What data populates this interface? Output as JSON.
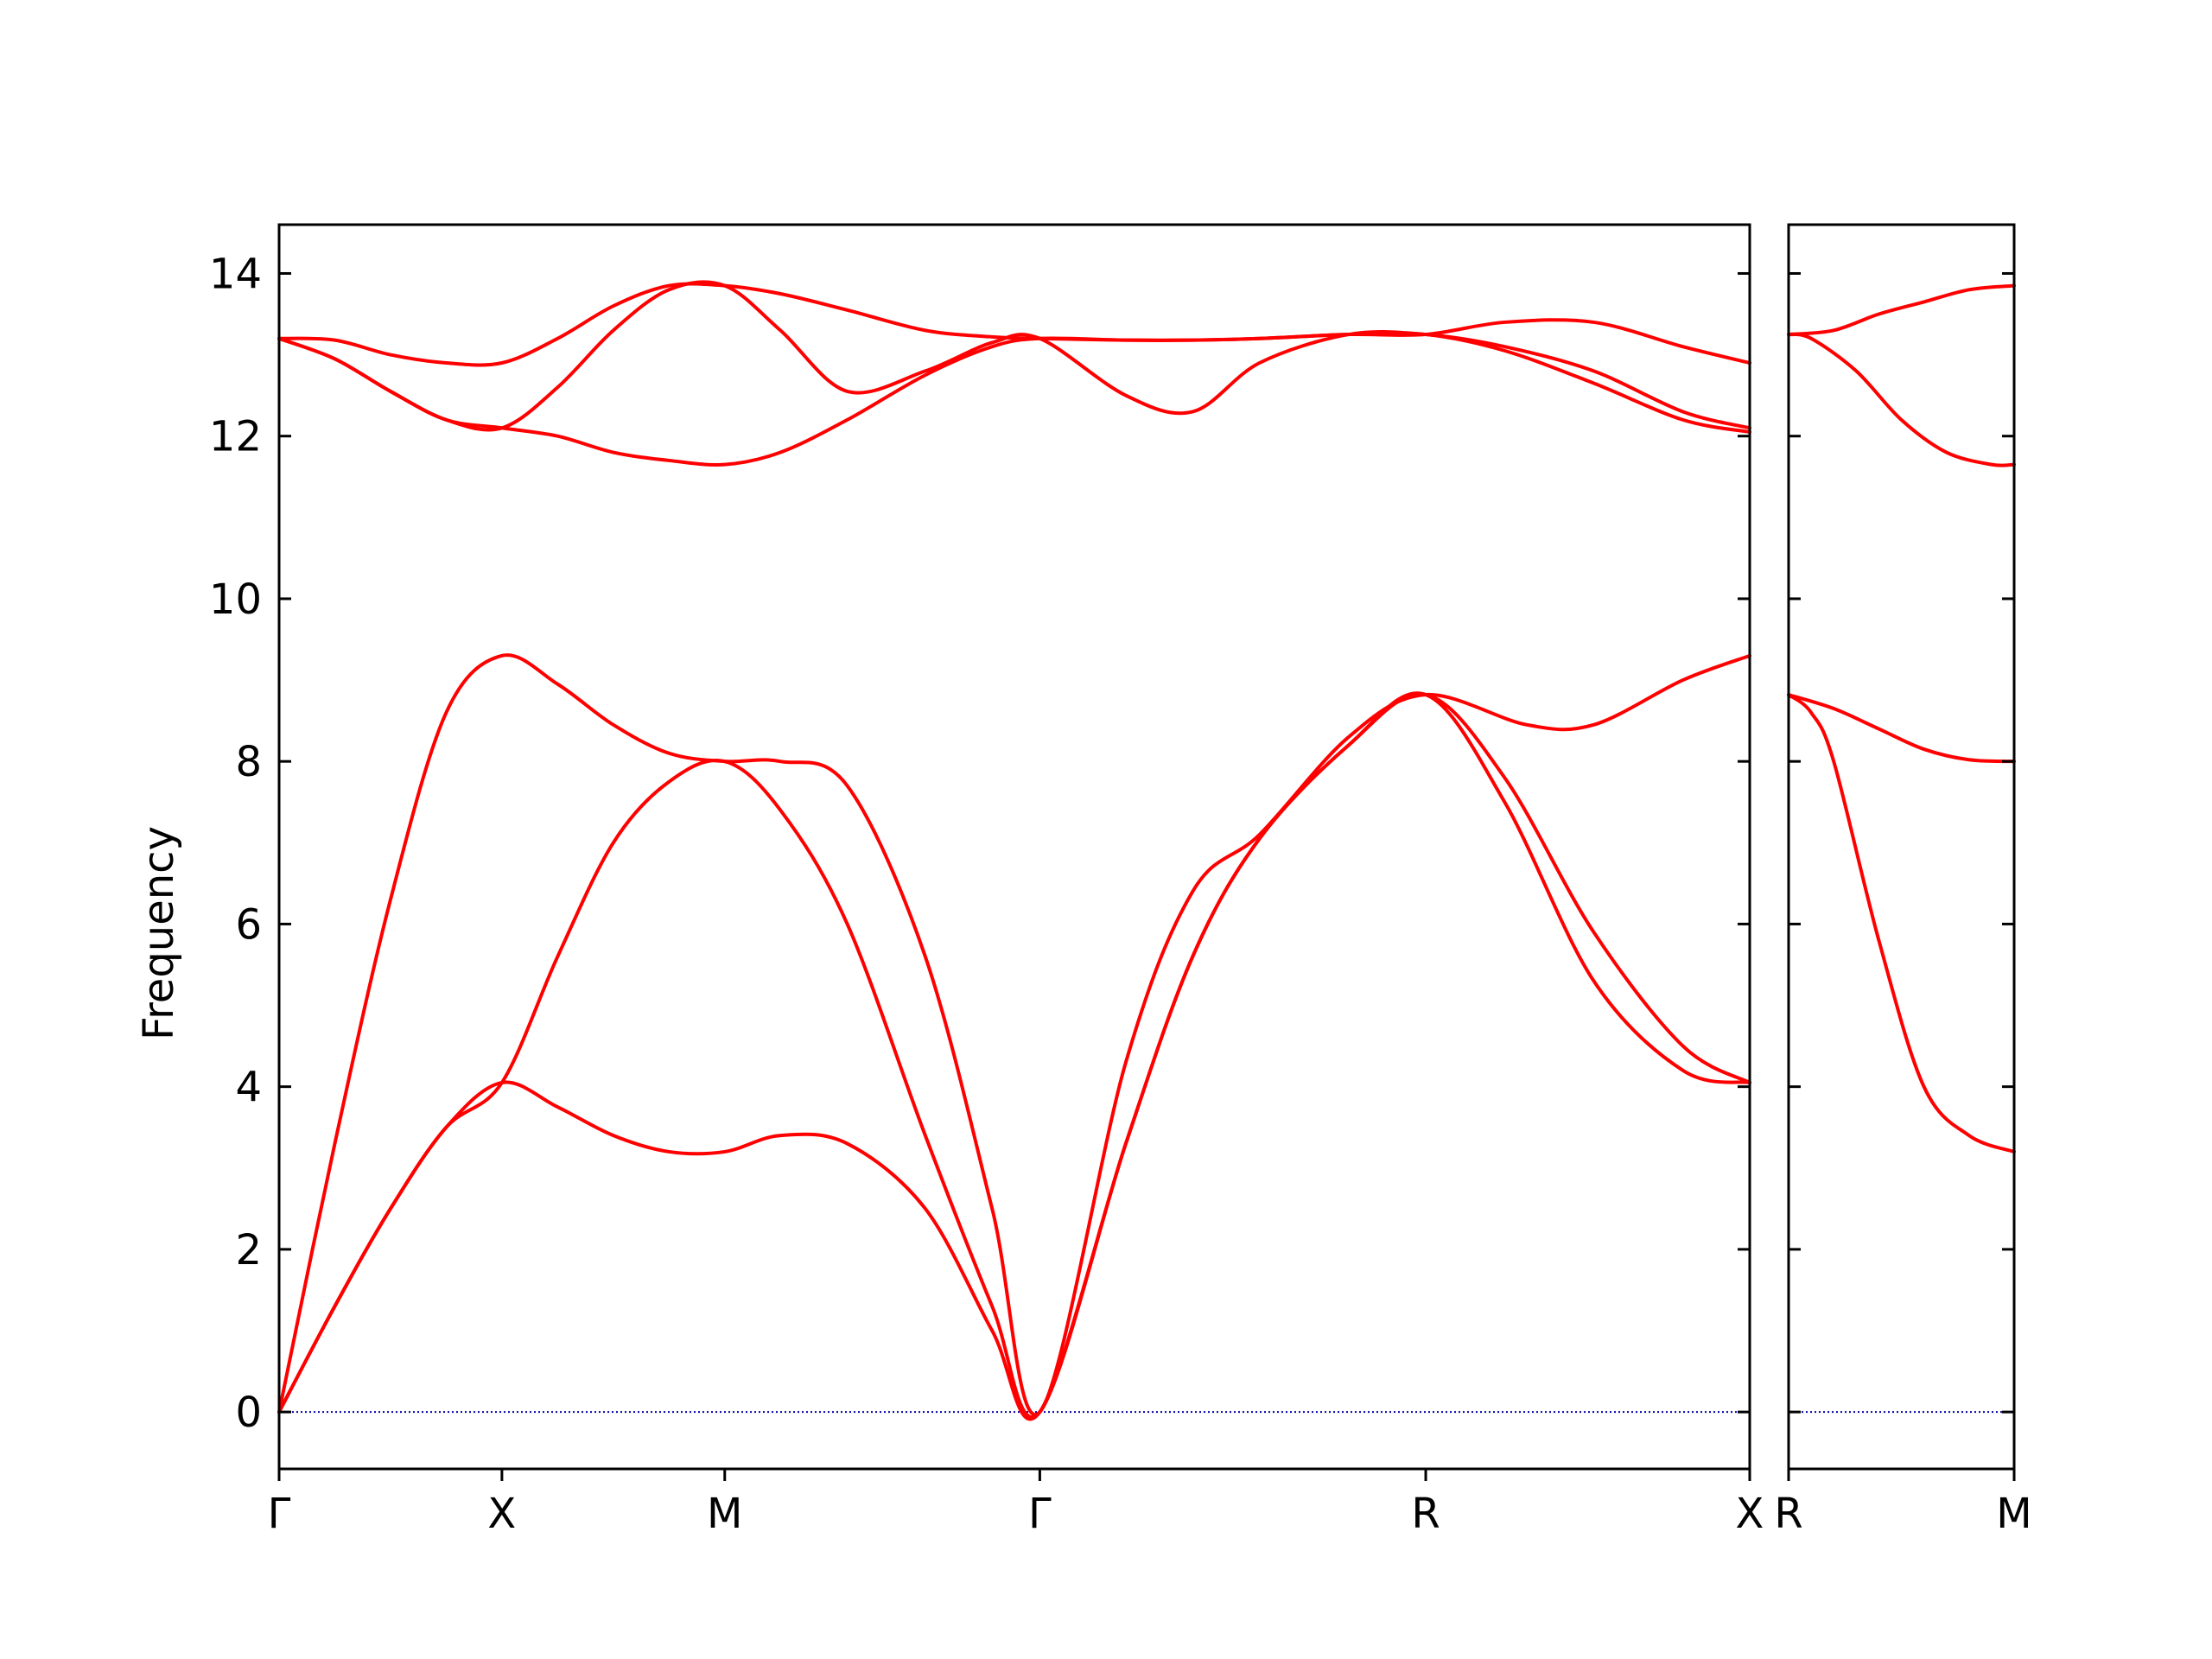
{
  "chart_data": {
    "type": "line",
    "ylabel": "Frequency",
    "ylim": [
      -0.7,
      14.6
    ],
    "yticks": [
      0,
      2,
      4,
      6,
      8,
      10,
      12,
      14
    ],
    "colors": {
      "band": "#ff0000",
      "zero_line": "#0000aa",
      "axes": "#000000"
    },
    "panels": [
      {
        "xlim": [
          0,
          6.6
        ],
        "ticks": [
          {
            "x": 0.0,
            "label": "Γ"
          },
          {
            "x": 1.0,
            "label": "X"
          },
          {
            "x": 2.0,
            "label": "M"
          },
          {
            "x": 3.414,
            "label": "Γ"
          },
          {
            "x": 5.146,
            "label": "R"
          },
          {
            "x": 6.6,
            "label": "X"
          }
        ],
        "bands": [
          [
            [
              0,
              0
            ],
            [
              0.25,
              3.3
            ],
            [
              0.5,
              6.3
            ],
            [
              0.75,
              8.6
            ],
            [
              1.0,
              9.3
            ],
            [
              1.25,
              8.95
            ],
            [
              1.5,
              8.45
            ],
            [
              1.75,
              8.1
            ],
            [
              2.0,
              8.0
            ],
            [
              2.25,
              8.0
            ],
            [
              2.55,
              7.7
            ],
            [
              2.9,
              5.6
            ],
            [
              3.2,
              2.5
            ],
            [
              3.414,
              0
            ],
            [
              3.8,
              4.3
            ],
            [
              4.1,
              6.4
            ],
            [
              4.4,
              7.1
            ],
            [
              4.8,
              8.3
            ],
            [
              5.146,
              8.82
            ],
            [
              5.6,
              8.45
            ],
            [
              5.9,
              8.45
            ],
            [
              6.3,
              9.0
            ],
            [
              6.6,
              9.3
            ]
          ],
          [
            [
              0,
              0
            ],
            [
              0.25,
              1.3
            ],
            [
              0.5,
              2.5
            ],
            [
              0.75,
              3.5
            ],
            [
              1.0,
              4.05
            ],
            [
              1.25,
              3.75
            ],
            [
              1.5,
              3.4
            ],
            [
              1.75,
              3.2
            ],
            [
              2.0,
              3.2
            ],
            [
              2.25,
              3.4
            ],
            [
              2.55,
              3.3
            ],
            [
              2.9,
              2.5
            ],
            [
              3.2,
              1.0
            ],
            [
              3.414,
              0
            ],
            [
              3.8,
              3.3
            ],
            [
              4.1,
              5.6
            ],
            [
              4.4,
              7.05
            ],
            [
              4.8,
              8.2
            ],
            [
              5.146,
              8.82
            ],
            [
              5.5,
              7.5
            ],
            [
              5.9,
              5.3
            ],
            [
              6.3,
              4.2
            ],
            [
              6.6,
              4.05
            ]
          ],
          [
            [
              0,
              0
            ],
            [
              0.25,
              1.3
            ],
            [
              0.5,
              2.5
            ],
            [
              0.75,
              3.5
            ],
            [
              1.0,
              4.05
            ],
            [
              1.25,
              5.6
            ],
            [
              1.5,
              7.0
            ],
            [
              1.75,
              7.75
            ],
            [
              2.0,
              8.0
            ],
            [
              2.25,
              7.4
            ],
            [
              2.55,
              6.0
            ],
            [
              2.9,
              3.4
            ],
            [
              3.2,
              1.3
            ],
            [
              3.414,
              0
            ],
            [
              3.8,
              3.3
            ],
            [
              4.1,
              5.6
            ],
            [
              4.4,
              7.05
            ],
            [
              4.8,
              8.2
            ],
            [
              5.146,
              8.82
            ],
            [
              5.5,
              7.8
            ],
            [
              5.9,
              5.9
            ],
            [
              6.3,
              4.5
            ],
            [
              6.6,
              4.05
            ]
          ],
          [
            [
              0,
              13.2
            ],
            [
              0.25,
              13.18
            ],
            [
              0.5,
              13.0
            ],
            [
              0.75,
              12.9
            ],
            [
              1.0,
              12.9
            ],
            [
              1.25,
              13.2
            ],
            [
              1.5,
              13.6
            ],
            [
              1.75,
              13.85
            ],
            [
              2.0,
              13.85
            ],
            [
              2.25,
              13.75
            ],
            [
              2.55,
              13.55
            ],
            [
              2.9,
              13.3
            ],
            [
              3.2,
              13.22
            ],
            [
              3.414,
              13.2
            ],
            [
              3.8,
              13.18
            ],
            [
              4.1,
              13.18
            ],
            [
              4.4,
              13.2
            ],
            [
              4.8,
              13.25
            ],
            [
              5.146,
              13.25
            ],
            [
              5.5,
              13.4
            ],
            [
              5.9,
              13.4
            ],
            [
              6.3,
              13.1
            ],
            [
              6.6,
              12.9
            ]
          ],
          [
            [
              0,
              13.2
            ],
            [
              0.25,
              12.95
            ],
            [
              0.5,
              12.55
            ],
            [
              0.75,
              12.2
            ],
            [
              1.0,
              12.1
            ],
            [
              1.25,
              12.6
            ],
            [
              1.5,
              13.3
            ],
            [
              1.75,
              13.8
            ],
            [
              2.0,
              13.85
            ],
            [
              2.25,
              13.3
            ],
            [
              2.55,
              12.55
            ],
            [
              2.9,
              12.8
            ],
            [
              3.2,
              13.15
            ],
            [
              3.414,
              13.2
            ],
            [
              3.8,
              12.5
            ],
            [
              4.1,
              12.3
            ],
            [
              4.4,
              12.9
            ],
            [
              4.8,
              13.25
            ],
            [
              5.146,
              13.25
            ],
            [
              5.5,
              13.1
            ],
            [
              5.9,
              12.8
            ],
            [
              6.3,
              12.3
            ],
            [
              6.6,
              12.1
            ]
          ],
          [
            [
              0,
              13.2
            ],
            [
              0.25,
              12.95
            ],
            [
              0.5,
              12.55
            ],
            [
              0.75,
              12.2
            ],
            [
              1.0,
              12.1
            ],
            [
              1.25,
              12.0
            ],
            [
              1.5,
              11.8
            ],
            [
              1.75,
              11.7
            ],
            [
              2.0,
              11.65
            ],
            [
              2.25,
              11.8
            ],
            [
              2.55,
              12.2
            ],
            [
              2.9,
              12.75
            ],
            [
              3.2,
              13.1
            ],
            [
              3.414,
              13.2
            ],
            [
              3.8,
              13.18
            ],
            [
              4.1,
              13.18
            ],
            [
              4.4,
              13.2
            ],
            [
              4.8,
              13.25
            ],
            [
              5.146,
              13.25
            ],
            [
              5.5,
              13.05
            ],
            [
              5.9,
              12.65
            ],
            [
              6.3,
              12.2
            ],
            [
              6.6,
              12.05
            ]
          ]
        ]
      },
      {
        "xlim": [
          0,
          1.0
        ],
        "ticks": [
          {
            "x": 0.0,
            "label": "R"
          },
          {
            "x": 1.0,
            "label": "M"
          }
        ],
        "bands": [
          [
            [
              0,
              8.82
            ],
            [
              0.2,
              8.65
            ],
            [
              0.4,
              8.4
            ],
            [
              0.6,
              8.15
            ],
            [
              0.8,
              8.02
            ],
            [
              1.0,
              8.0
            ]
          ],
          [
            [
              0,
              8.82
            ],
            [
              0.1,
              8.6
            ],
            [
              0.2,
              8.0
            ],
            [
              0.4,
              5.8
            ],
            [
              0.6,
              4.0
            ],
            [
              0.8,
              3.4
            ],
            [
              1.0,
              3.2
            ]
          ],
          [
            [
              0,
              13.25
            ],
            [
              0.2,
              13.3
            ],
            [
              0.4,
              13.5
            ],
            [
              0.6,
              13.65
            ],
            [
              0.8,
              13.8
            ],
            [
              1.0,
              13.85
            ]
          ],
          [
            [
              0,
              13.25
            ],
            [
              0.1,
              13.2
            ],
            [
              0.3,
              12.8
            ],
            [
              0.5,
              12.2
            ],
            [
              0.7,
              11.8
            ],
            [
              0.9,
              11.65
            ],
            [
              1.0,
              11.65
            ]
          ]
        ]
      }
    ]
  }
}
